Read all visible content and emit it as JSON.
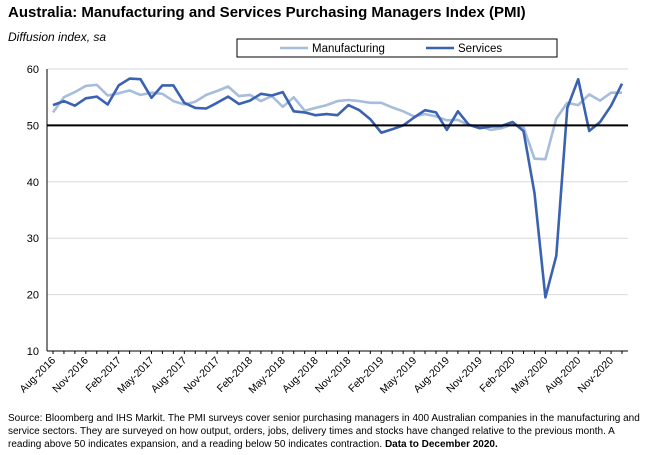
{
  "header": {
    "title": "Australia:  Manufacturing and Services Purchasing Managers Index (PMI)",
    "subtitle": "Diffusion index, sa"
  },
  "footer": {
    "source": "Source: Bloomberg and IHS Markit.  The PMI surveys cover senior purchasing managers in 400 Australian companies in the manufacturing and service sectors.  They are surveyed on how output, orders, jobs, delivery times and stocks have changed relative to the previous month.  A reading above 50 indicates expansion, and a reading below 50 indicates contraction.",
    "data_note": "Data to December 2020."
  },
  "colors": {
    "manufacturing": "#a6bddb",
    "services": "#3a62b0",
    "reference_line": "#000000",
    "grid": "#d9d9d9"
  },
  "chart_data": {
    "type": "line",
    "x": [
      "Aug-2016",
      "Sep-2016",
      "Oct-2016",
      "Nov-2016",
      "Dec-2016",
      "Jan-2017",
      "Feb-2017",
      "Mar-2017",
      "Apr-2017",
      "May-2017",
      "Jun-2017",
      "Jul-2017",
      "Aug-2017",
      "Sep-2017",
      "Oct-2017",
      "Nov-2017",
      "Dec-2017",
      "Jan-2018",
      "Feb-2018",
      "Mar-2018",
      "Apr-2018",
      "May-2018",
      "Jun-2018",
      "Jul-2018",
      "Aug-2018",
      "Sep-2018",
      "Oct-2018",
      "Nov-2018",
      "Dec-2018",
      "Jan-2019",
      "Feb-2019",
      "Mar-2019",
      "Apr-2019",
      "May-2019",
      "Jun-2019",
      "Jul-2019",
      "Aug-2019",
      "Sep-2019",
      "Oct-2019",
      "Nov-2019",
      "Dec-2019",
      "Jan-2020",
      "Feb-2020",
      "Mar-2020",
      "Apr-2020",
      "May-2020",
      "Jun-2020",
      "Jul-2020",
      "Aug-2020",
      "Sep-2020",
      "Oct-2020",
      "Nov-2020",
      "Dec-2020"
    ],
    "xticks": [
      "Aug-2016",
      "Nov-2016",
      "Feb-2017",
      "May-2017",
      "Aug-2017",
      "Nov-2017",
      "Feb-2018",
      "May-2018",
      "Aug-2018",
      "Nov-2018",
      "Feb-2019",
      "May-2019",
      "Aug-2019",
      "Nov-2019",
      "Feb-2020",
      "May-2020",
      "Aug-2020",
      "Nov-2020"
    ],
    "series": [
      {
        "name": "Manufacturing",
        "values": [
          52.3,
          55.0,
          55.9,
          57.0,
          57.2,
          55.3,
          55.7,
          56.2,
          55.4,
          55.8,
          55.6,
          54.3,
          53.7,
          54.2,
          55.4,
          56.1,
          56.9,
          55.2,
          55.4,
          54.3,
          55.2,
          53.3,
          55.0,
          52.6,
          53.1,
          53.6,
          54.3,
          54.5,
          54.3,
          54.0,
          54.0,
          53.2,
          52.5,
          51.6,
          52.0,
          51.6,
          50.9,
          51.0,
          50.0,
          49.9,
          49.2,
          49.5,
          50.2,
          49.7,
          44.1,
          44.0,
          51.2,
          54.0,
          53.6,
          55.5,
          54.4,
          55.8,
          55.8
        ]
      },
      {
        "name": "Services",
        "values": [
          53.6,
          54.3,
          53.5,
          54.8,
          55.1,
          53.7,
          57.1,
          58.3,
          58.2,
          54.9,
          57.1,
          57.1,
          54.0,
          53.1,
          53.0,
          54.0,
          55.1,
          53.8,
          54.4,
          55.6,
          55.3,
          55.9,
          52.5,
          52.3,
          51.8,
          52.0,
          51.8,
          53.6,
          52.7,
          51.1,
          48.7,
          49.3,
          50.0,
          51.4,
          52.7,
          52.3,
          49.2,
          52.5,
          50.1,
          49.5,
          49.8,
          49.9,
          50.6,
          49.0,
          38.0,
          19.5,
          26.9,
          53.1,
          58.2,
          49.0,
          50.6,
          53.5,
          57.4
        ]
      }
    ],
    "ylim": [
      10,
      60
    ],
    "yticks": [
      10,
      20,
      30,
      40,
      50,
      60
    ],
    "reference_line": 50,
    "grid": true,
    "legend": "top-center"
  }
}
